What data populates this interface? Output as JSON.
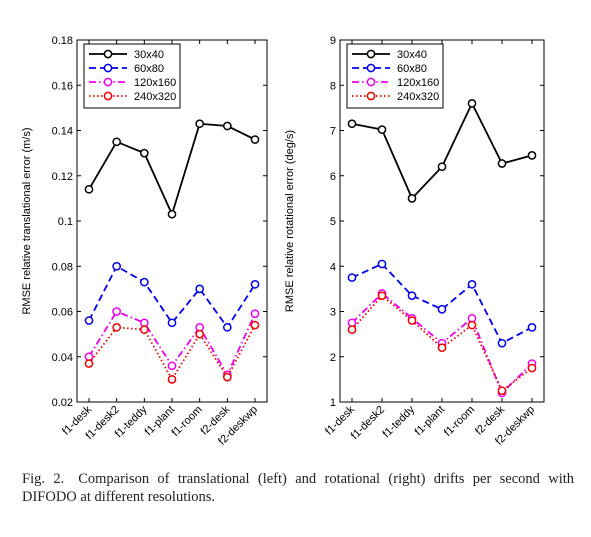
{
  "caption": {
    "label": "Fig. 2.",
    "text": "Comparison of translational (left) and rotational (right) drifts per second with DIFODO at different resolutions."
  },
  "chart_data": [
    {
      "type": "line",
      "title": "",
      "xlabel": "",
      "ylabel": "RMSE relative translational error (m/s)",
      "categories": [
        "f1-desk",
        "f1-desk2",
        "f1-teddy",
        "f1-plant",
        "f1-room",
        "f2-desk",
        "f2-deskwp"
      ],
      "ylim": [
        0.02,
        0.18
      ],
      "yticks": [
        0.02,
        0.04,
        0.06,
        0.08,
        0.1,
        0.12,
        0.14,
        0.16,
        0.18
      ],
      "ytick_labels": [
        "0.02",
        "0.04",
        "0.06",
        "0.08",
        "0.1",
        "0.12",
        "0.14",
        "0.16",
        "0.18"
      ],
      "legend_position": "top-left",
      "grid": false,
      "series": [
        {
          "name": "30x40",
          "color": "#000000",
          "dash": "solid",
          "values": [
            0.114,
            0.135,
            0.13,
            0.103,
            0.143,
            0.142,
            0.136
          ]
        },
        {
          "name": "60x80",
          "color": "#0000ee",
          "dash": "dashed",
          "values": [
            0.056,
            0.08,
            0.073,
            0.055,
            0.07,
            0.053,
            0.072
          ]
        },
        {
          "name": "120x160",
          "color": "#ee00ee",
          "dash": "dashdot",
          "values": [
            0.04,
            0.06,
            0.055,
            0.036,
            0.053,
            0.032,
            0.059
          ]
        },
        {
          "name": "240x320",
          "color": "#ee0000",
          "dash": "dotted",
          "values": [
            0.037,
            0.053,
            0.052,
            0.03,
            0.05,
            0.031,
            0.054
          ]
        }
      ]
    },
    {
      "type": "line",
      "title": "",
      "xlabel": "",
      "ylabel": "RMSE relative rotational error (deg/s)",
      "categories": [
        "f1-desk",
        "f1-desk2",
        "f1-teddy",
        "f1-plant",
        "f1-room",
        "f2-desk",
        "f2-deskwp"
      ],
      "ylim": [
        1,
        9
      ],
      "yticks": [
        1,
        2,
        3,
        4,
        5,
        6,
        7,
        8,
        9
      ],
      "ytick_labels": [
        "1",
        "2",
        "3",
        "4",
        "5",
        "6",
        "7",
        "8",
        "9"
      ],
      "legend_position": "top-right",
      "grid": false,
      "series": [
        {
          "name": "30x40",
          "color": "#000000",
          "dash": "solid",
          "values": [
            7.15,
            7.02,
            5.5,
            6.2,
            7.6,
            6.27,
            6.45
          ]
        },
        {
          "name": "60x80",
          "color": "#0000ee",
          "dash": "dashed",
          "values": [
            3.75,
            4.05,
            3.35,
            3.05,
            3.6,
            2.3,
            2.65
          ]
        },
        {
          "name": "120x160",
          "color": "#ee00ee",
          "dash": "dashdot",
          "values": [
            2.75,
            3.4,
            2.85,
            2.3,
            2.85,
            1.2,
            1.85
          ]
        },
        {
          "name": "240x320",
          "color": "#ee0000",
          "dash": "dotted",
          "values": [
            2.6,
            3.35,
            2.8,
            2.2,
            2.7,
            1.25,
            1.75
          ]
        }
      ]
    }
  ]
}
